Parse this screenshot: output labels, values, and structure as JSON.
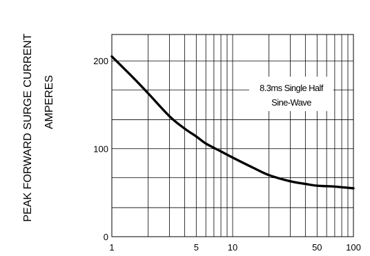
{
  "chart_data": {
    "type": "line",
    "title": "",
    "ylabel_lines": [
      "PEAK FORWARD SURGE CURRENT",
      "AMPERES"
    ],
    "xlabel": "",
    "xscale": "log",
    "xlim": [
      1,
      100
    ],
    "ylim": [
      0,
      230
    ],
    "grid": true,
    "x_ticks": [
      1,
      5,
      10,
      50,
      100
    ],
    "x_tick_labels": [
      "1",
      "5",
      "10",
      "50",
      "100"
    ],
    "y_ticks": [
      0,
      100,
      200
    ],
    "y_tick_labels": [
      "0",
      "100",
      "200"
    ],
    "y_minor_grid": [
      33,
      67,
      133,
      167
    ],
    "annotation_lines": [
      "8.3ms Single Half",
      "Sine-Wave"
    ],
    "series": [
      {
        "x": [
          1,
          1.5,
          2,
          3,
          4,
          5,
          6,
          8,
          10,
          15,
          20,
          30,
          40,
          50,
          70,
          100
        ],
        "y": [
          205,
          181,
          163,
          137,
          123,
          114,
          106,
          97,
          90,
          78,
          70,
          63,
          60,
          58,
          57,
          55
        ]
      }
    ],
    "line_color": "#000000"
  }
}
